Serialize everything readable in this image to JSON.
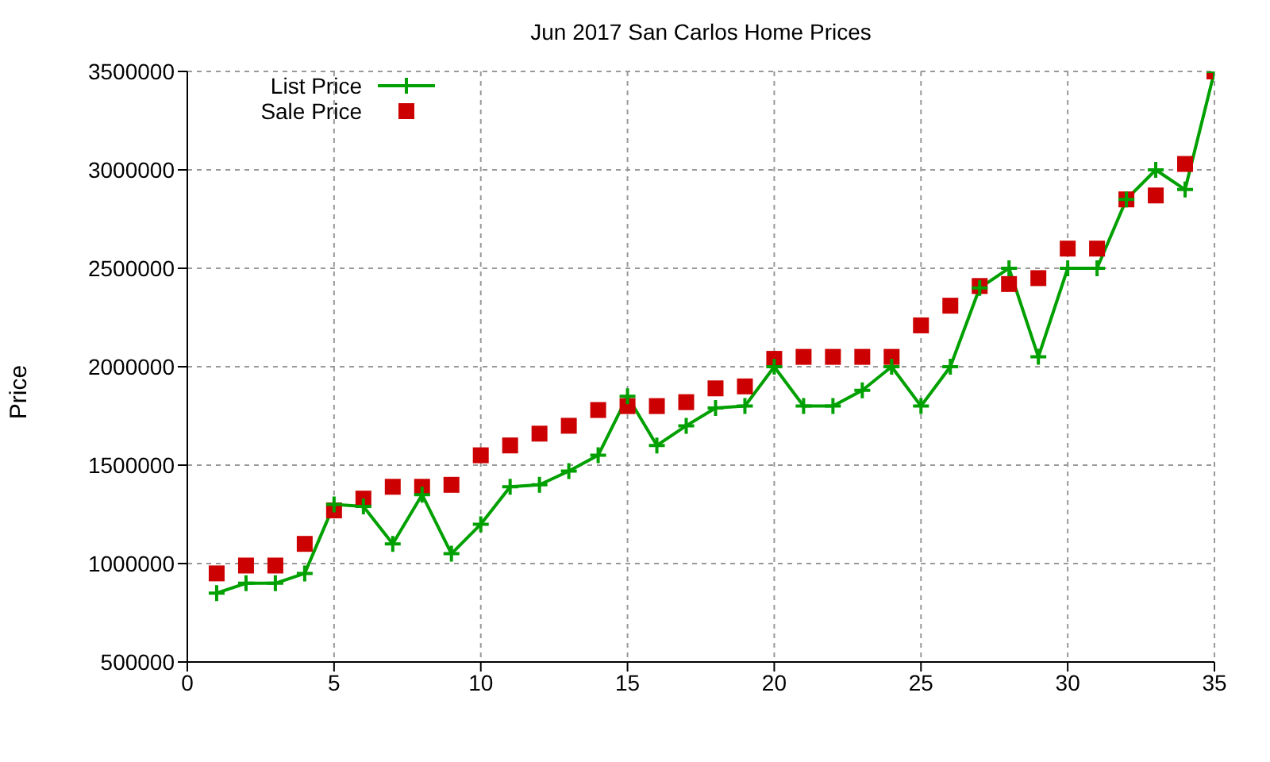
{
  "chart_data": {
    "type": "line",
    "title": "Jun 2017 San Carlos Home Prices",
    "ylabel": "Price",
    "x": [
      1,
      2,
      3,
      4,
      5,
      6,
      7,
      8,
      9,
      10,
      11,
      12,
      13,
      14,
      15,
      16,
      17,
      18,
      19,
      20,
      21,
      22,
      23,
      24,
      25,
      26,
      27,
      28,
      29,
      30,
      31,
      32,
      33,
      34,
      35
    ],
    "series": [
      {
        "name": "List Price",
        "marker": "cross",
        "color": "#00a000",
        "values": [
          850000,
          900000,
          900000,
          950000,
          1300000,
          1290000,
          1100000,
          1350000,
          1050000,
          1200000,
          1390000,
          1400000,
          1470000,
          1550000,
          1850000,
          1600000,
          1700000,
          1790000,
          1800000,
          2000000,
          1800000,
          1800000,
          1880000,
          2000000,
          1800000,
          2000000,
          2400000,
          2500000,
          2050000,
          2500000,
          2500000,
          2850000,
          3000000,
          2900000,
          3500000
        ]
      },
      {
        "name": "Sale Price",
        "type": "scatter",
        "marker": "square",
        "color": "#cc0000",
        "values": [
          950000,
          990000,
          990000,
          1100000,
          1270000,
          1330000,
          1390000,
          1390000,
          1400000,
          1550000,
          1600000,
          1660000,
          1700000,
          1780000,
          1800000,
          1800000,
          1820000,
          1890000,
          1900000,
          2040000,
          2050000,
          2050000,
          2050000,
          2050000,
          2210000,
          2310000,
          2410000,
          2420000,
          2450000,
          2600000,
          2600000,
          2850000,
          2870000,
          3030000,
          3500000
        ]
      }
    ],
    "xlim": [
      0,
      35
    ],
    "xticks": [
      0,
      5,
      10,
      15,
      20,
      25,
      30,
      35
    ],
    "ylim": [
      500000,
      3500000
    ],
    "yticks": [
      500000,
      1000000,
      1500000,
      2000000,
      2500000,
      3000000,
      3500000
    ],
    "grid": true,
    "legend": "top left"
  }
}
